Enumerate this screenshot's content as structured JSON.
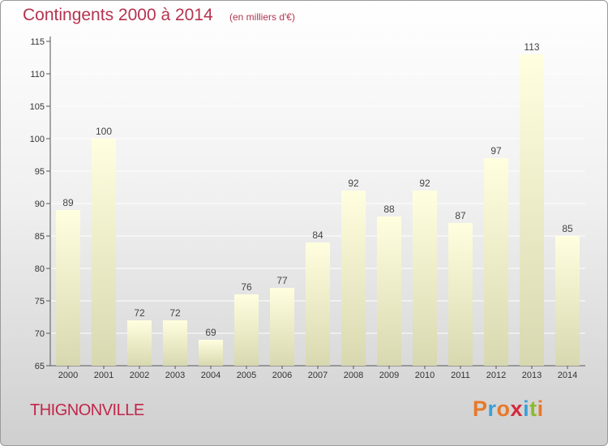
{
  "header": {
    "title": "Contingents 2000 à 2014",
    "subtitle": "(en milliers d'€)"
  },
  "footer": {
    "commune": "THIGNONVILLE",
    "logo_letters": [
      "P",
      "r",
      "o",
      "x",
      "i",
      "t",
      "i"
    ],
    "logo_colors": [
      "#e8782a",
      "#3aa0d8",
      "#e8782a",
      "#d6283c",
      "#3aa0d8",
      "#8cbb2a",
      "#e8782a"
    ]
  },
  "chart_data": {
    "type": "bar",
    "title": "Contingents 2000 à 2014",
    "subtitle": "(en milliers d'€)",
    "xlabel": "",
    "ylabel": "",
    "categories": [
      "2000",
      "2001",
      "2002",
      "2003",
      "2004",
      "2005",
      "2006",
      "2007",
      "2008",
      "2009",
      "2010",
      "2011",
      "2012",
      "2013",
      "2014"
    ],
    "values": [
      89,
      100,
      72,
      72,
      69,
      76,
      77,
      84,
      92,
      88,
      92,
      87,
      97,
      113,
      85
    ],
    "ylim": [
      65,
      115
    ],
    "yticks": [
      65,
      70,
      75,
      80,
      85,
      90,
      95,
      100,
      105,
      110,
      115
    ],
    "grid": true,
    "bar_color_top": "#ffffe0",
    "bar_color_bottom": "#d8d8b0",
    "grid_color": "#ffffff"
  }
}
